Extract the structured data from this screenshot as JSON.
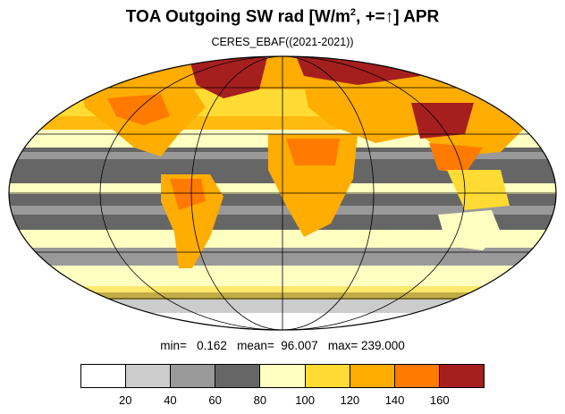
{
  "title": {
    "main": "TOA Outgoing SW rad [W/m",
    "superscript": "2",
    "middle": ", +=",
    "arrow": "↑",
    "end": "] APR"
  },
  "subtitle": "CERES_EBAF((2021-2021))",
  "stats": {
    "text": "min=   0.162   mean=  96.007   max= 239.000"
  },
  "colorbar": {
    "colors": [
      "#ffffff",
      "#cccccc",
      "#999999",
      "#666666",
      "#ffffc2",
      "#ffdb33",
      "#ffad00",
      "#ff7a00",
      "#a61f1f"
    ],
    "tick_labels": [
      "20",
      "40",
      "60",
      "80",
      "100",
      "120",
      "140",
      "160"
    ]
  },
  "map": {
    "projection": "Mollweide",
    "ocean_fill": "#666666"
  }
}
